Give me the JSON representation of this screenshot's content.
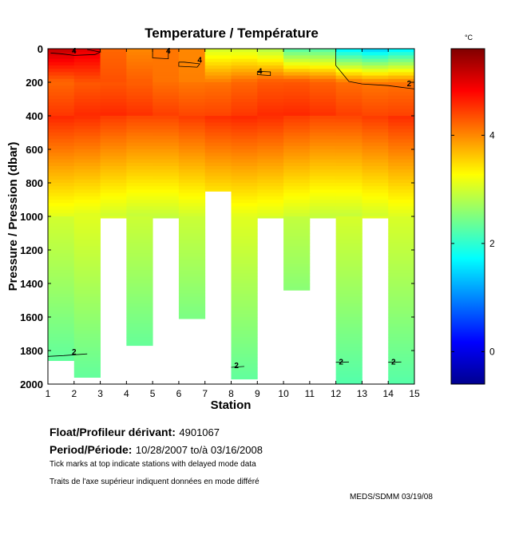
{
  "chart_data": {
    "type": "heatmap",
    "title": "Temperature / Température",
    "xlabel": "Station",
    "ylabel": "Pressure / Pression (dbar)",
    "xlim": [
      1,
      15
    ],
    "ylim": [
      0,
      2000
    ],
    "xticks": [
      "1",
      "2",
      "3",
      "4",
      "5",
      "6",
      "7",
      "8",
      "9",
      "10",
      "11",
      "12",
      "13",
      "14",
      "15"
    ],
    "yticks": [
      "0",
      "200",
      "400",
      "600",
      "800",
      "1000",
      "1200",
      "1400",
      "1600",
      "1800",
      "2000"
    ],
    "stations": [
      1,
      2,
      3,
      4,
      5,
      6,
      7,
      8,
      9,
      10,
      11,
      12,
      13,
      14
    ],
    "max_depth": [
      1860,
      1960,
      1010,
      1770,
      1010,
      1610,
      850,
      1970,
      1010,
      1440,
      1010,
      2000,
      1010,
      2000
    ],
    "surface_temp": [
      5.2,
      5.0,
      4.2,
      4.0,
      4.1,
      4.0,
      3.0,
      3.0,
      2.8,
      2.2,
      2.2,
      1.6,
      1.4,
      1.6
    ],
    "colorbar": {
      "unit": "°C",
      "min": -0.6,
      "max": 5.6,
      "ticks": [
        "0",
        "2",
        "4"
      ]
    },
    "contour_labels": [
      {
        "text": "4",
        "station": 2.0,
        "pressure": 5
      },
      {
        "text": "4",
        "station": 5.6,
        "pressure": 5
      },
      {
        "text": "4",
        "station": 6.8,
        "pressure": 60
      },
      {
        "text": "4",
        "station": 9.1,
        "pressure": 125
      },
      {
        "text": "2",
        "station": 14.8,
        "pressure": 200
      },
      {
        "text": "2",
        "station": 2.0,
        "pressure": 1800
      },
      {
        "text": "2",
        "station": 8.2,
        "pressure": 1880
      },
      {
        "text": "2",
        "station": 12.2,
        "pressure": 1860
      },
      {
        "text": "2",
        "station": 14.2,
        "pressure": 1860
      }
    ]
  },
  "info": {
    "float_label": "Float/Profileur dérivant:",
    "float_value": "4901067",
    "period_label": "Period/Période:",
    "period_value": "10/28/2007  to/à  03/16/2008",
    "note_tick": "Tick marks at top indicate stations with delayed mode data",
    "note_tick_fr": "Traits de l'axe supérieur indiquent données en mode différé",
    "credit": "MEDS/SDMM  03/19/08"
  }
}
